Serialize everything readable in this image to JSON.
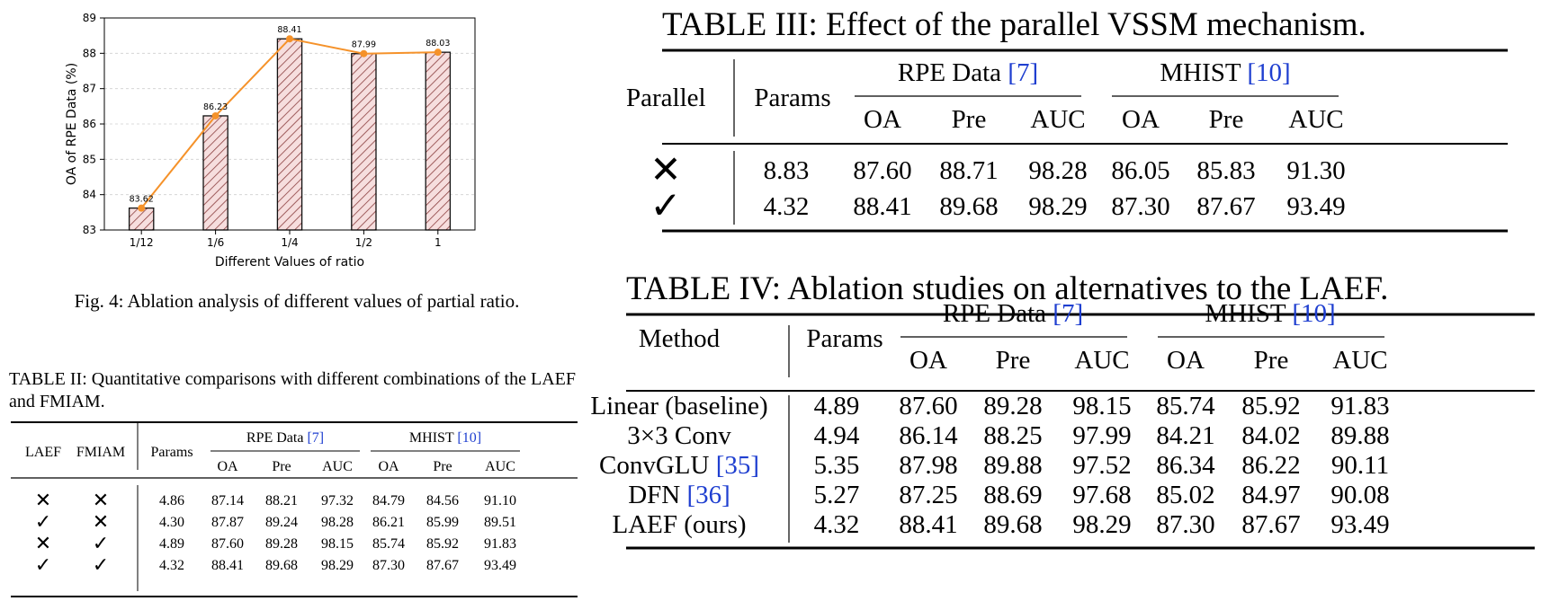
{
  "figure4": {
    "caption": "Fig. 4: Ablation analysis of different values of partial ratio.",
    "chart_data": {
      "type": "bar",
      "categories": [
        "1/12",
        "1/6",
        "1/4",
        "1/2",
        "1"
      ],
      "values": [
        83.62,
        86.23,
        88.41,
        87.99,
        88.03
      ],
      "data_labels": [
        "83.62",
        "86.23",
        "88.41",
        "87.99",
        "88.03"
      ],
      "xlabel": "Different Values of ratio",
      "ylabel": "OA of RPE Data (%)",
      "ylim": [
        83,
        89
      ],
      "yticks": [
        "83",
        "84",
        "85",
        "86",
        "87",
        "88",
        "89"
      ],
      "grid": true,
      "bar_style": "hatched",
      "overlay_line": true,
      "colors": {
        "bar_fill": "#f6dede",
        "bar_hatch": "#8a3d3d",
        "line": "#f5922a"
      }
    }
  },
  "table2": {
    "caption": "TABLE II: Quantitative comparisons with different combinations of the LAEF and FMIAM.",
    "headers": {
      "laef": "LAEF",
      "fmiam": "FMIAM",
      "params": "Params",
      "group1": "RPE Data",
      "group1_ref": "[7]",
      "group2": "MHIST",
      "group2_ref": "[10]",
      "sub": [
        "OA",
        "Pre",
        "AUC",
        "OA",
        "Pre",
        "AUC"
      ]
    },
    "rows": [
      {
        "laef": "✕",
        "fmiam": "✕",
        "params": "4.86",
        "values": [
          "87.14",
          "88.21",
          "97.32",
          "84.79",
          "84.56",
          "91.10"
        ]
      },
      {
        "laef": "✓",
        "fmiam": "✕",
        "params": "4.30",
        "values": [
          "87.87",
          "89.24",
          "98.28",
          "86.21",
          "85.99",
          "89.51"
        ]
      },
      {
        "laef": "✕",
        "fmiam": "✓",
        "params": "4.89",
        "values": [
          "87.60",
          "89.28",
          "98.15",
          "85.74",
          "85.92",
          "91.83"
        ]
      },
      {
        "laef": "✓",
        "fmiam": "✓",
        "params": "4.32",
        "values": [
          "88.41",
          "89.68",
          "98.29",
          "87.30",
          "87.67",
          "93.49"
        ]
      }
    ]
  },
  "table3": {
    "caption": "TABLE III: Effect of the parallel VSSM mechanism.",
    "headers": {
      "parallel": "Parallel",
      "params": "Params",
      "group1": "RPE Data",
      "group1_ref": "[7]",
      "group2": "MHIST",
      "group2_ref": "[10]",
      "sub": [
        "OA",
        "Pre",
        "AUC",
        "OA",
        "Pre",
        "AUC"
      ]
    },
    "rows": [
      {
        "parallel": "✕",
        "params": "8.83",
        "values": [
          "87.60",
          "88.71",
          "98.28",
          "86.05",
          "85.83",
          "91.30"
        ]
      },
      {
        "parallel": "✓",
        "params": "4.32",
        "values": [
          "88.41",
          "89.68",
          "98.29",
          "87.30",
          "87.67",
          "93.49"
        ]
      }
    ]
  },
  "table4": {
    "caption": "TABLE IV: Ablation studies on alternatives to the LAEF.",
    "headers": {
      "method": "Method",
      "params": "Params",
      "group1": "RPE Data",
      "group1_ref": "[7]",
      "group2": "MHIST",
      "group2_ref": "[10]",
      "sub": [
        "OA",
        "Pre",
        "AUC",
        "OA",
        "Pre",
        "AUC"
      ]
    },
    "rows": [
      {
        "method": "Linear (baseline)",
        "ref": "",
        "params": "4.89",
        "values": [
          "87.60",
          "89.28",
          "98.15",
          "85.74",
          "85.92",
          "91.83"
        ]
      },
      {
        "method": "3×3 Conv",
        "ref": "",
        "params": "4.94",
        "values": [
          "86.14",
          "88.25",
          "97.99",
          "84.21",
          "84.02",
          "89.88"
        ]
      },
      {
        "method": "ConvGLU",
        "ref": "[35]",
        "params": "5.35",
        "values": [
          "87.98",
          "89.88",
          "97.52",
          "86.34",
          "86.22",
          "90.11"
        ]
      },
      {
        "method": "DFN",
        "ref": "[36]",
        "params": "5.27",
        "values": [
          "87.25",
          "88.69",
          "97.68",
          "85.02",
          "84.97",
          "90.08"
        ]
      },
      {
        "method": "LAEF (ours)",
        "ref": "",
        "params": "4.32",
        "values": [
          "88.41",
          "89.68",
          "98.29",
          "87.30",
          "87.67",
          "93.49"
        ]
      }
    ]
  }
}
